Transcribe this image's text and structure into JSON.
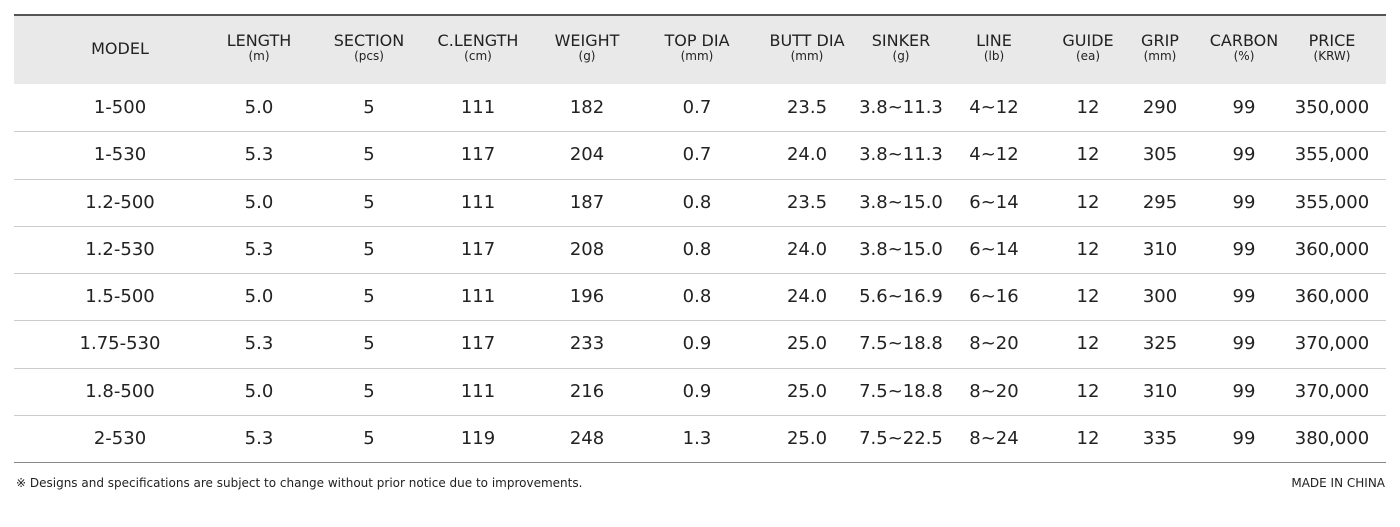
{
  "header": {
    "columns": [
      {
        "name": "MODEL"
      },
      {
        "name": "LENGTH",
        "unit": "(m)"
      },
      {
        "name": "SECTION",
        "unit": "(pcs)"
      },
      {
        "name": "C.LENGTH",
        "unit": "(cm)"
      },
      {
        "name": "WEIGHT",
        "unit": "(g)"
      },
      {
        "name": "TOP DIA",
        "unit": "(mm)"
      },
      {
        "name": "BUTT DIA",
        "unit": "(mm)"
      },
      {
        "name": "SINKER",
        "unit": "(g)"
      },
      {
        "name": "LINE",
        "unit": "(lb)"
      },
      {
        "name": "GUIDE",
        "unit": "(ea)"
      },
      {
        "name": "GRIP",
        "unit": "(mm)"
      },
      {
        "name": "CARBON",
        "unit": "(%)"
      },
      {
        "name": "PRICE",
        "unit": "(KRW)"
      }
    ]
  },
  "table": {
    "rows": [
      [
        "1-500",
        "5.0",
        "5",
        "111",
        "182",
        "0.7",
        "23.5",
        "3.8~11.3",
        "4~12",
        "12",
        "290",
        "99",
        "350,000"
      ],
      [
        "1-530",
        "5.3",
        "5",
        "117",
        "204",
        "0.7",
        "24.0",
        "3.8~11.3",
        "4~12",
        "12",
        "305",
        "99",
        "355,000"
      ],
      [
        "1.2-500",
        "5.0",
        "5",
        "111",
        "187",
        "0.8",
        "23.5",
        "3.8~15.0",
        "6~14",
        "12",
        "295",
        "99",
        "355,000"
      ],
      [
        "1.2-530",
        "5.3",
        "5",
        "117",
        "208",
        "0.8",
        "24.0",
        "3.8~15.0",
        "6~14",
        "12",
        "310",
        "99",
        "360,000"
      ],
      [
        "1.5-500",
        "5.0",
        "5",
        "111",
        "196",
        "0.8",
        "24.0",
        "5.6~16.9",
        "6~16",
        "12",
        "300",
        "99",
        "360,000"
      ],
      [
        "1.75-530",
        "5.3",
        "5",
        "117",
        "233",
        "0.9",
        "25.0",
        "7.5~18.8",
        "8~20",
        "12",
        "325",
        "99",
        "370,000"
      ],
      [
        "1.8-500",
        "5.0",
        "5",
        "111",
        "216",
        "0.9",
        "25.0",
        "7.5~18.8",
        "8~20",
        "12",
        "310",
        "99",
        "370,000"
      ],
      [
        "2-530",
        "5.3",
        "5",
        "119",
        "248",
        "1.3",
        "25.0",
        "7.5~22.5",
        "8~24",
        "12",
        "335",
        "99",
        "380,000"
      ]
    ]
  },
  "footer": {
    "note": "※ Designs and specifications are subject to change without prior notice due to improvements.",
    "origin": "MADE IN CHINA"
  }
}
